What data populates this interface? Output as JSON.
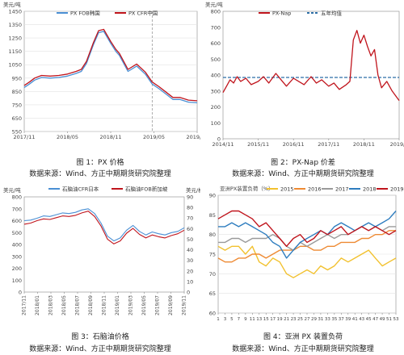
{
  "figures": [
    {
      "caption": "图 1：PX 价格",
      "source": "数据来源：Wind、方正中期期货研究院整理"
    },
    {
      "caption": "图 2：PX-Nap 价差",
      "source": "数据来源：Wind、方正中期期货研究院整理"
    },
    {
      "caption": "图 3：石脑油价格",
      "source": "数据来源：Wind、方正中期期货研究院整理"
    },
    {
      "caption": "图 4：亚洲 PX 装置负荷",
      "source": "数据来源：Wind、方正中期期货研究院整理"
    }
  ],
  "colors": {
    "blue": "#4a8fd4",
    "red": "#c0141c",
    "dashed_blue": "#2c6ea6",
    "grey": "#9a9a9a",
    "yellow": "#f2c12e",
    "orange": "#ee8a33",
    "green_blue": "#2e7dbf",
    "red2": "#c0141c"
  },
  "chart_data": [
    {
      "type": "line",
      "unit": "美元/吨",
      "ylim": [
        550,
        1450
      ],
      "yticks": [
        "550",
        "650",
        "750",
        "850",
        "950",
        "1050",
        "1150",
        "1250",
        "1350",
        "1450"
      ],
      "xticks": [
        "2017/11",
        "2018/05",
        "2018/11",
        "2019/05",
        "2019/11"
      ],
      "legend": [
        "PX FOB韩国",
        "PX CFR中国"
      ],
      "legend_placement": "top",
      "vline_x": 0.74,
      "x": [
        0,
        0.03,
        0.06,
        0.1,
        0.15,
        0.2,
        0.25,
        0.3,
        0.33,
        0.36,
        0.4,
        0.43,
        0.46,
        0.5,
        0.53,
        0.55,
        0.6,
        0.65,
        0.7,
        0.74,
        0.78,
        0.82,
        0.86,
        0.9,
        0.95,
        1.0
      ],
      "series": [
        {
          "name": "PX FOB韩国",
          "color": "#4a8fd4",
          "values": [
            880,
            905,
            935,
            955,
            950,
            955,
            965,
            985,
            1000,
            1060,
            1200,
            1290,
            1300,
            1210,
            1150,
            1120,
            1000,
            1040,
            980,
            905,
            870,
            830,
            790,
            790,
            770,
            765
          ]
        },
        {
          "name": "PX CFR中国",
          "color": "#c0141c",
          "values": [
            895,
            920,
            950,
            970,
            965,
            970,
            980,
            1000,
            1015,
            1075,
            1215,
            1305,
            1315,
            1225,
            1165,
            1135,
            1015,
            1055,
            995,
            920,
            885,
            845,
            805,
            805,
            785,
            780
          ]
        }
      ]
    },
    {
      "type": "line",
      "unit": "美元/吨",
      "ylim": [
        0,
        800
      ],
      "yticks": [
        "0",
        "100",
        "200",
        "300",
        "400",
        "500",
        "600",
        "700",
        "800"
      ],
      "xticks": [
        "2014/11",
        "2015/11",
        "2016/11",
        "2017/11",
        "2018/11",
        "2019/1"
      ],
      "legend": [
        "PX-Nap",
        "五年均值"
      ],
      "legend_placement": "top",
      "five_year_mean": 385,
      "x": [
        0,
        0.02,
        0.04,
        0.06,
        0.08,
        0.1,
        0.13,
        0.16,
        0.2,
        0.23,
        0.26,
        0.3,
        0.33,
        0.36,
        0.4,
        0.43,
        0.46,
        0.5,
        0.53,
        0.56,
        0.6,
        0.63,
        0.66,
        0.7,
        0.72,
        0.74,
        0.76,
        0.78,
        0.8,
        0.82,
        0.84,
        0.86,
        0.88,
        0.9,
        0.93,
        0.96,
        1.0
      ],
      "series": [
        {
          "name": "PX-Nap",
          "color": "#c0141c",
          "values": [
            290,
            330,
            370,
            350,
            390,
            360,
            380,
            340,
            360,
            390,
            350,
            410,
            370,
            330,
            380,
            360,
            340,
            390,
            350,
            370,
            330,
            350,
            310,
            340,
            360,
            620,
            680,
            600,
            650,
            580,
            520,
            560,
            400,
            320,
            360,
            300,
            240
          ]
        }
      ]
    },
    {
      "type": "line",
      "unit_left": "美元/吨",
      "unit_right": "美元/桶",
      "ylim": [
        0,
        800
      ],
      "ylim_right": [
        0,
        90
      ],
      "yticks": [
        "0",
        "100",
        "200",
        "300",
        "400",
        "500",
        "600",
        "700",
        "800"
      ],
      "yticks_right": [
        "0",
        "10",
        "20",
        "30",
        "40",
        "50",
        "60",
        "70",
        "80",
        "90"
      ],
      "xticks": [
        "2017/11",
        "2018/01",
        "2018/03",
        "2018/05",
        "2018/07",
        "2018/09",
        "2018/11",
        "2019/01",
        "2019/03",
        "2019/05",
        "2019/07",
        "2019/09",
        "2019/11"
      ],
      "legend": [
        "石脑油CFR日本",
        "石脑油FOB新加坡"
      ],
      "legend_placement": "top",
      "x": [
        0,
        0.04,
        0.08,
        0.12,
        0.16,
        0.2,
        0.24,
        0.28,
        0.32,
        0.36,
        0.4,
        0.44,
        0.48,
        0.52,
        0.56,
        0.6,
        0.64,
        0.68,
        0.72,
        0.76,
        0.8,
        0.84,
        0.88,
        0.92,
        0.96,
        1.0
      ],
      "series": [
        {
          "name": "石脑油CFR日本",
          "color": "#4a8fd4",
          "values": [
            600,
            605,
            620,
            640,
            635,
            650,
            665,
            660,
            670,
            690,
            700,
            660,
            580,
            470,
            430,
            455,
            520,
            560,
            510,
            480,
            505,
            490,
            480,
            500,
            510,
            540
          ]
        },
        {
          "name": "石脑油FOB新加坡",
          "color": "#c0141c",
          "values": [
            570,
            580,
            600,
            615,
            610,
            625,
            640,
            635,
            645,
            665,
            680,
            635,
            555,
            445,
            405,
            430,
            495,
            535,
            485,
            455,
            480,
            465,
            455,
            475,
            490,
            520
          ]
        }
      ]
    },
    {
      "type": "line",
      "title": "亚洲PX装置负荷（%）",
      "ylim": [
        60,
        90
      ],
      "yticks": [
        "60",
        "65",
        "70",
        "75",
        "80",
        "85",
        "90"
      ],
      "xticks": [
        "1",
        "3",
        "5",
        "7",
        "9",
        "11",
        "13",
        "15",
        "17",
        "19",
        "21",
        "23",
        "25",
        "27",
        "29",
        "31",
        "33",
        "35",
        "37",
        "39",
        "41",
        "43",
        "45",
        "47",
        "49",
        "51",
        "53"
      ],
      "legend": [
        "2015",
        "2016",
        "2017",
        "2018",
        "2019"
      ],
      "legend_placement": "top",
      "series": [
        {
          "name": "2015",
          "color": "#f2c12e",
          "values": [
            77,
            76,
            77,
            77,
            75,
            77,
            73,
            72,
            74,
            73,
            70,
            69,
            70,
            71,
            70,
            72,
            71,
            72,
            74,
            73,
            74,
            75,
            76,
            74,
            72,
            73,
            74
          ]
        },
        {
          "name": "2016",
          "color": "#ee8a33",
          "values": [
            74,
            73,
            73,
            74,
            74,
            75,
            75,
            74,
            75,
            76,
            76,
            76,
            77,
            77,
            76,
            76,
            77,
            77,
            78,
            78,
            78,
            79,
            79,
            80,
            80,
            81,
            81
          ]
        },
        {
          "name": "2017",
          "color": "#9a9a9a",
          "values": [
            78,
            78,
            79,
            79,
            78,
            79,
            79,
            79,
            80,
            79,
            77,
            76,
            78,
            77,
            78,
            79,
            80,
            79,
            80,
            80,
            81,
            82,
            81,
            82,
            81,
            82,
            82
          ]
        },
        {
          "name": "2018",
          "color": "#2e7dbf",
          "values": [
            82,
            82,
            83,
            82,
            83,
            82,
            81,
            80,
            78,
            77,
            74,
            76,
            78,
            79,
            80,
            81,
            80,
            82,
            83,
            82,
            81,
            82,
            83,
            82,
            83,
            84,
            86
          ]
        },
        {
          "name": "2019",
          "color": "#c0141c",
          "values": [
            84,
            85,
            86,
            86,
            85,
            84,
            82,
            83,
            81,
            79,
            77,
            79,
            80,
            78,
            79,
            81,
            80,
            81,
            82,
            80,
            81,
            82,
            81,
            82,
            81,
            80,
            81
          ]
        }
      ]
    }
  ]
}
